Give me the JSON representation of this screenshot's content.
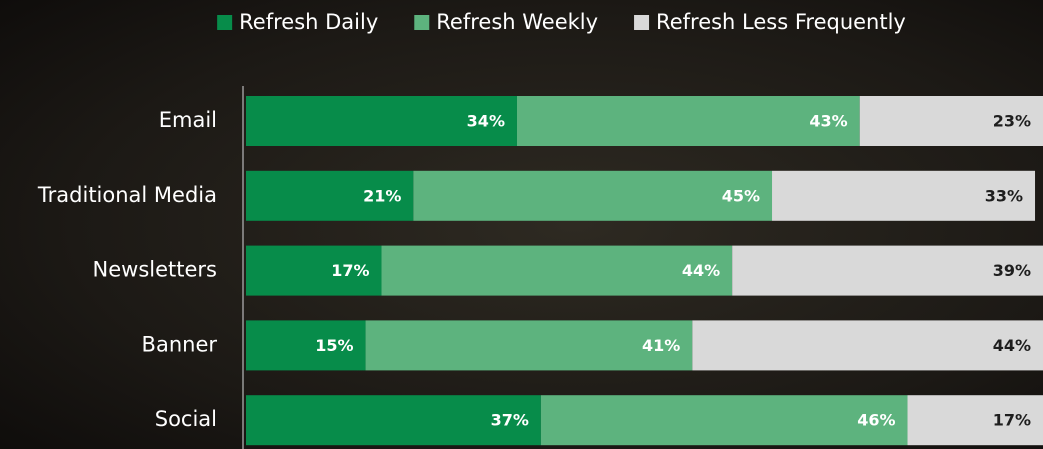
{
  "chart_data": {
    "type": "stacked-bar-horizontal",
    "categories": [
      "Email",
      "Traditional Media",
      "Newsletters",
      "Banner",
      "Social"
    ],
    "xlim": [
      0,
      100
    ],
    "legend": "top",
    "series": [
      {
        "name": "Refresh Daily",
        "color": "#078c4a",
        "values": [
          34,
          21,
          17,
          15,
          37
        ],
        "value_labels": [
          "34%",
          "21%",
          "17%",
          "15%",
          "37%"
        ]
      },
      {
        "name": "Refresh Weekly",
        "color": "#5db37e",
        "values": [
          43,
          45,
          44,
          41,
          46
        ],
        "value_labels": [
          "43%",
          "45%",
          "44%",
          "41%",
          "46%"
        ]
      },
      {
        "name": "Refresh Less Frequently",
        "color": "#d9d9d9",
        "values": [
          23,
          33,
          39,
          44,
          17
        ],
        "value_labels": [
          "23%",
          "33%",
          "39%",
          "44%",
          "17%"
        ]
      }
    ]
  }
}
